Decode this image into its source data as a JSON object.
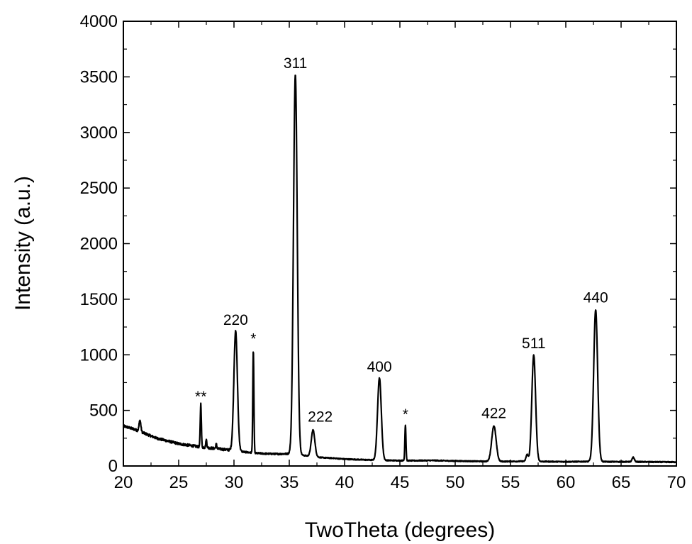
{
  "chart_data": {
    "type": "line",
    "xlabel": "TwoTheta (degrees)",
    "ylabel": "Intensity (a.u.)",
    "xlim": [
      20,
      70
    ],
    "ylim": [
      0,
      4000
    ],
    "x_ticks": [
      "20",
      "25",
      "30",
      "35",
      "40",
      "45",
      "50",
      "55",
      "60",
      "65",
      "70"
    ],
    "y_ticks": [
      "0",
      "500",
      "1000",
      "1500",
      "2000",
      "2500",
      "3000",
      "3500",
      "4000"
    ],
    "grid": false,
    "legend": "none",
    "line_color": "#000000",
    "baseline": [
      [
        20,
        360
      ],
      [
        21,
        330
      ],
      [
        22,
        290
      ],
      [
        23,
        250
      ],
      [
        24,
        225
      ],
      [
        25,
        200
      ],
      [
        26,
        185
      ],
      [
        27,
        170
      ],
      [
        28,
        160
      ],
      [
        29,
        150
      ],
      [
        30,
        140
      ],
      [
        31,
        125
      ],
      [
        32,
        115
      ],
      [
        33,
        110
      ],
      [
        34,
        108
      ],
      [
        35,
        110
      ],
      [
        36,
        100
      ],
      [
        37,
        85
      ],
      [
        38,
        75
      ],
      [
        39,
        70
      ],
      [
        40,
        62
      ],
      [
        42,
        55
      ],
      [
        44,
        50
      ],
      [
        46,
        48
      ],
      [
        48,
        50
      ],
      [
        50,
        45
      ],
      [
        52,
        42
      ],
      [
        54,
        40
      ],
      [
        56,
        42
      ],
      [
        58,
        40
      ],
      [
        60,
        38
      ],
      [
        62,
        40
      ],
      [
        64,
        38
      ],
      [
        66,
        38
      ],
      [
        68,
        36
      ],
      [
        70,
        35
      ]
    ],
    "peaks": [
      {
        "x": 21.5,
        "height": 100,
        "width": 0.08
      },
      {
        "x": 27.0,
        "height": 390,
        "width": 0.05
      },
      {
        "x": 27.5,
        "height": 70,
        "width": 0.05
      },
      {
        "x": 28.4,
        "height": 40,
        "width": 0.05
      },
      {
        "x": 30.15,
        "height": 1075,
        "width": 0.16
      },
      {
        "x": 31.75,
        "height": 920,
        "width": 0.05
      },
      {
        "x": 35.55,
        "height": 3420,
        "width": 0.17
      },
      {
        "x": 37.15,
        "height": 240,
        "width": 0.16
      },
      {
        "x": 43.15,
        "height": 740,
        "width": 0.17
      },
      {
        "x": 45.5,
        "height": 320,
        "width": 0.05
      },
      {
        "x": 53.5,
        "height": 320,
        "width": 0.2
      },
      {
        "x": 56.5,
        "height": 60,
        "width": 0.1
      },
      {
        "x": 57.1,
        "height": 955,
        "width": 0.17
      },
      {
        "x": 62.7,
        "height": 1365,
        "width": 0.18
      },
      {
        "x": 66.1,
        "height": 40,
        "width": 0.1
      }
    ],
    "annotations": [
      {
        "text": "**",
        "x": 27.0,
        "y": 580
      },
      {
        "text": "220",
        "x": 30.15,
        "y": 1270
      },
      {
        "text": "*",
        "x": 31.75,
        "y": 1100
      },
      {
        "text": "311",
        "x": 35.55,
        "y": 3580
      },
      {
        "text": "222",
        "x": 37.8,
        "y": 400
      },
      {
        "text": "400",
        "x": 43.15,
        "y": 850
      },
      {
        "text": "*",
        "x": 45.5,
        "y": 420
      },
      {
        "text": "422",
        "x": 53.5,
        "y": 430
      },
      {
        "text": "511",
        "x": 57.1,
        "y": 1060
      },
      {
        "text": "440",
        "x": 62.7,
        "y": 1470
      }
    ]
  }
}
